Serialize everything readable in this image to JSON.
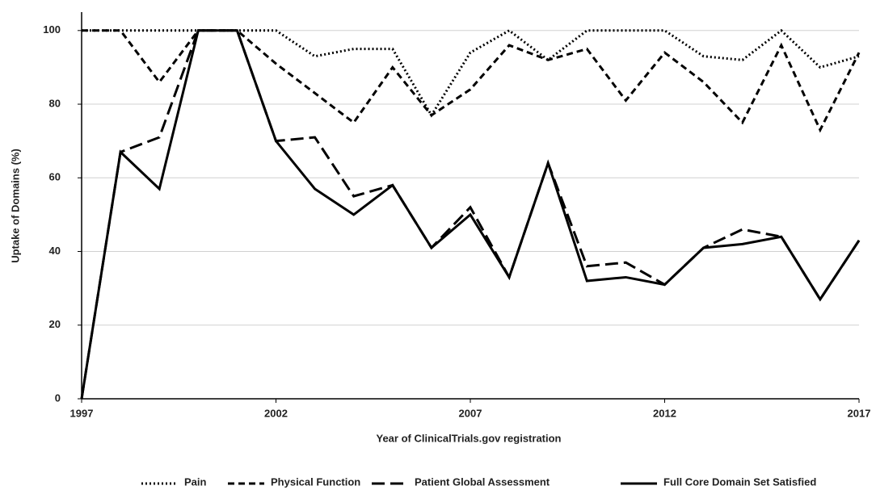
{
  "chart_data": {
    "type": "line",
    "x_label": "Year of ClinicalTrials.gov registration",
    "y_label": "Uptake of Domains (%)",
    "x": [
      1997,
      1998,
      1999,
      2000,
      2001,
      2002,
      2003,
      2004,
      2005,
      2006,
      2007,
      2008,
      2009,
      2010,
      2011,
      2012,
      2013,
      2014,
      2015,
      2016,
      2017
    ],
    "series": [
      {
        "name": "Pain",
        "color": "#000000",
        "style": "dotted",
        "values": [
          100,
          100,
          100,
          100,
          100,
          100,
          93,
          95,
          95,
          77,
          94,
          100,
          92,
          100,
          100,
          100,
          93,
          92,
          100,
          90,
          93
        ]
      },
      {
        "name": "Physical Function",
        "color": "#000000",
        "style": "dashed",
        "values": [
          100,
          100,
          86,
          100,
          100,
          91,
          83,
          75,
          90,
          77,
          84,
          96,
          92,
          95,
          81,
          94,
          86,
          75,
          96,
          73,
          94
        ]
      },
      {
        "name": "Patient Global Assessment",
        "color": "#000000",
        "style": "long-dashed",
        "values": [
          0,
          67,
          71,
          100,
          100,
          70,
          71,
          55,
          58,
          41,
          52,
          33,
          64,
          36,
          37,
          31,
          41,
          46,
          44,
          27,
          43
        ]
      },
      {
        "name": "Full Core Domain Set Satisfied",
        "color": "#000000",
        "style": "solid",
        "values": [
          0,
          67,
          57,
          100,
          100,
          70,
          57,
          50,
          58,
          41,
          50,
          33,
          64,
          32,
          33,
          31,
          41,
          42,
          44,
          27,
          43
        ]
      }
    ],
    "xlim": [
      1997,
      2017
    ],
    "xticks": [
      1997,
      2002,
      2007,
      2012,
      2017
    ],
    "ylim": [
      0,
      105
    ],
    "yticks": [
      0,
      20,
      40,
      60,
      80,
      100
    ],
    "grid": true,
    "legend": "bottom"
  }
}
